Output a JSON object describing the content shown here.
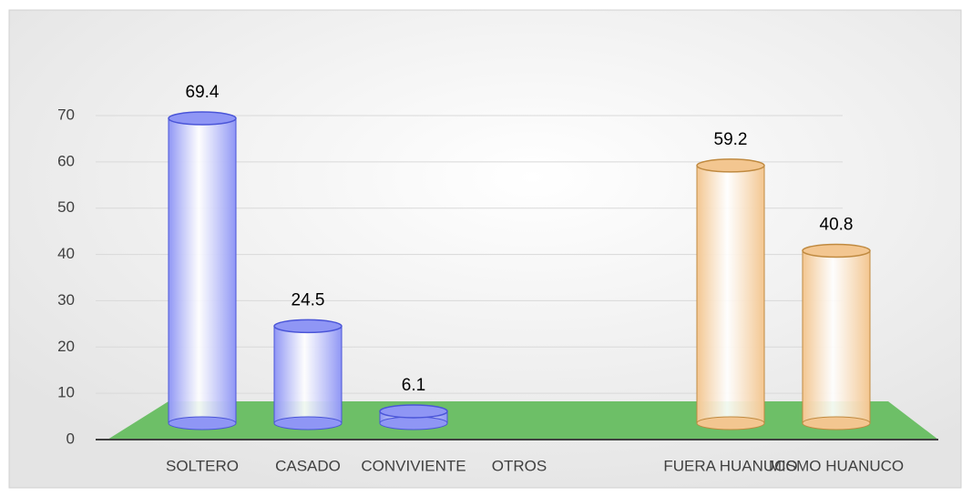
{
  "chart_data": {
    "type": "bar",
    "categories": [
      "SOLTERO",
      "CASADO",
      "CONVIVIENTE",
      "OTROS",
      null,
      "FUERA HUANUCO",
      "MISMO HUANUCO"
    ],
    "values": [
      69.4,
      24.5,
      6.1,
      null,
      null,
      59.2,
      40.8
    ],
    "colors": [
      "#8f96f5",
      "#8f96f5",
      "#8f96f5",
      "#8f96f5",
      "#8f96f5",
      "#f3c690",
      "#f3c690"
    ],
    "ylim": [
      0,
      70
    ],
    "yticks": [
      0,
      10,
      20,
      30,
      40,
      50,
      60,
      70
    ],
    "grid": true
  }
}
